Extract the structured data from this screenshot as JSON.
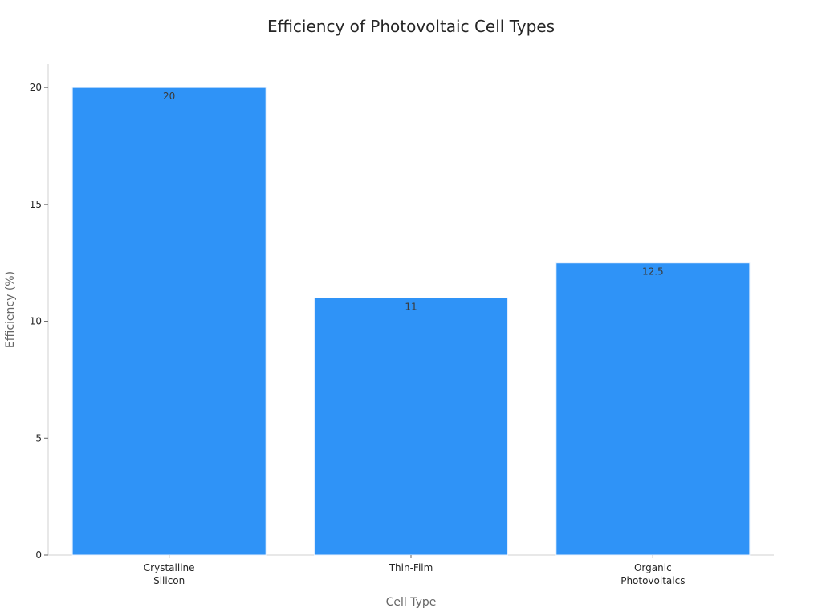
{
  "chart_data": {
    "type": "bar",
    "title": "Efficiency of Photovoltaic Cell Types",
    "xlabel": "Cell Type",
    "ylabel": "Efficiency (%)",
    "categories": [
      [
        "Crystalline",
        "Silicon"
      ],
      [
        "Thin-Film"
      ],
      [
        "Organic",
        "Photovoltaics"
      ]
    ],
    "values": [
      20,
      11,
      12.5
    ],
    "data_labels": [
      "20",
      "11",
      "12.5"
    ],
    "yticks": [
      0,
      5,
      10,
      15,
      20
    ],
    "ylim": [
      0,
      21
    ],
    "grid": false,
    "colors": {
      "bar": "#2f93f7",
      "bar_edge": "#e8f2fe"
    }
  }
}
